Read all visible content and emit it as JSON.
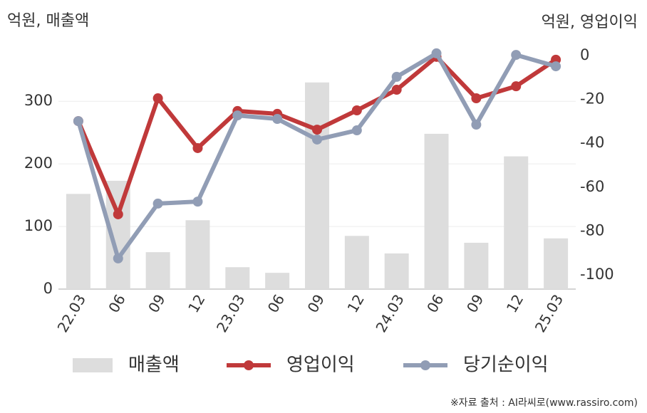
{
  "chart_data": {
    "type": "combo",
    "y_title": "억원, 매출액",
    "y2_title": "억원, 영업이익",
    "source": "※자료 출처 : AI라씨로(www.rassiro.com)",
    "categories": [
      "22.03",
      "06",
      "09",
      "12",
      "23.03",
      "06",
      "09",
      "12",
      "24.03",
      "06",
      "09",
      "12",
      "25.03"
    ],
    "ylim": [
      0,
      373
    ],
    "yticks": [
      0,
      100,
      200,
      300
    ],
    "y2lim": [
      -106.5,
      0
    ],
    "y2ticks": [
      0,
      -20,
      -40,
      -60,
      -80,
      -100
    ],
    "grid": true,
    "series": [
      {
        "name": "매출액",
        "kind": "bar",
        "color": "#dddddd",
        "values": [
          152,
          173,
          59,
          110,
          35,
          26,
          330,
          85,
          57,
          248,
          74,
          212,
          81
        ]
      },
      {
        "name": "영업이익",
        "kind": "line",
        "axis": "y2",
        "color": "#c0393a",
        "values": [
          -29.9,
          -72.4,
          -19.5,
          -42.2,
          -25.3,
          -26.6,
          -33.8,
          -25,
          -15.6,
          -0.6,
          -19.5,
          -14,
          -1.9
        ]
      },
      {
        "name": "당기순이익",
        "kind": "line",
        "axis": "y2",
        "color": "#919db5",
        "values": [
          -29.9,
          -92.5,
          -67.5,
          -66.6,
          -27.3,
          -28.9,
          -38.3,
          -34.1,
          -9.7,
          1,
          -31.5,
          0.3,
          -4.9
        ]
      }
    ]
  }
}
